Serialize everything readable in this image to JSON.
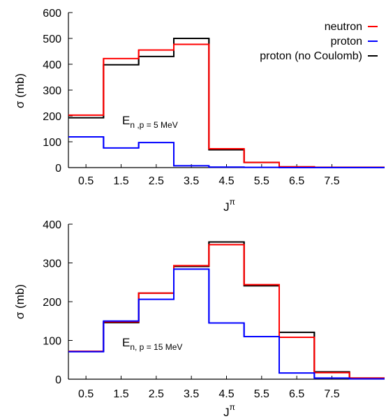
{
  "chart_data": [
    {
      "type": "line",
      "step": "histogram",
      "ylabel": "σ (mb)",
      "xlabel": "J",
      "xlabel_superscript": "π",
      "ylim": [
        0,
        600
      ],
      "xlim": [
        0,
        9
      ],
      "y_ticks": [
        "0",
        "100",
        "200",
        "300",
        "400",
        "500",
        "600"
      ],
      "x_ticks": [
        {
          "x": 0.5,
          "label": "0.5"
        },
        {
          "x": 1.5,
          "label": "1.5"
        },
        {
          "x": 2.5,
          "label": "2.5"
        },
        {
          "x": 3.5,
          "label": "3.5"
        },
        {
          "x": 4.5,
          "label": "4.5"
        },
        {
          "x": 5.5,
          "label": "5.5"
        },
        {
          "x": 6.5,
          "label": "6.5"
        },
        {
          "x": 7.5,
          "label": "7.5"
        }
      ],
      "bin_edges": [
        0,
        1,
        2,
        3,
        4,
        5,
        6,
        7,
        9
      ],
      "annotation": {
        "main": "E",
        "sub": "n ,p = 5 MeV"
      },
      "legend_position": "top-right",
      "series": [
        {
          "name": "neutron",
          "color": "#ff0000",
          "values": [
            203,
            422,
            455,
            477,
            73,
            20,
            3,
            1
          ]
        },
        {
          "name": "proton",
          "color": "#0000ff",
          "values": [
            119,
            76,
            97,
            7,
            2,
            1,
            0,
            0
          ]
        },
        {
          "name": "proton (no Coulomb)",
          "color": "#000000",
          "values": [
            193,
            398,
            430,
            500,
            69,
            20,
            3,
            1
          ]
        }
      ]
    },
    {
      "type": "line",
      "step": "histogram",
      "ylabel": "σ (mb)",
      "xlabel": "J",
      "xlabel_superscript": "π",
      "ylim": [
        0,
        400
      ],
      "xlim": [
        0,
        9
      ],
      "y_ticks": [
        "0",
        "100",
        "200",
        "300",
        "400"
      ],
      "x_ticks": [
        {
          "x": 0.5,
          "label": "0.5"
        },
        {
          "x": 1.5,
          "label": "1.5"
        },
        {
          "x": 2.5,
          "label": "2.5"
        },
        {
          "x": 3.5,
          "label": "3.5"
        },
        {
          "x": 4.5,
          "label": "4.5"
        },
        {
          "x": 5.5,
          "label": "5.5"
        },
        {
          "x": 6.5,
          "label": "6.5"
        },
        {
          "x": 7.5,
          "label": "7.5"
        }
      ],
      "bin_edges": [
        0,
        1,
        2,
        3,
        4,
        5,
        6,
        7,
        8,
        9
      ],
      "annotation": {
        "main": "E",
        "sub": "n, p = 15 MeV"
      },
      "series": [
        {
          "name": "neutron",
          "color": "#ff0000",
          "values": [
            72,
            148,
            222,
            293,
            347,
            244,
            108,
            17,
            3
          ]
        },
        {
          "name": "proton",
          "color": "#0000ff",
          "values": [
            71,
            150,
            206,
            284,
            145,
            110,
            16,
            3,
            1
          ]
        },
        {
          "name": "proton (no Coulomb)",
          "color": "#000000",
          "values": [
            72,
            146,
            222,
            291,
            354,
            241,
            121,
            19,
            3
          ]
        }
      ]
    }
  ]
}
